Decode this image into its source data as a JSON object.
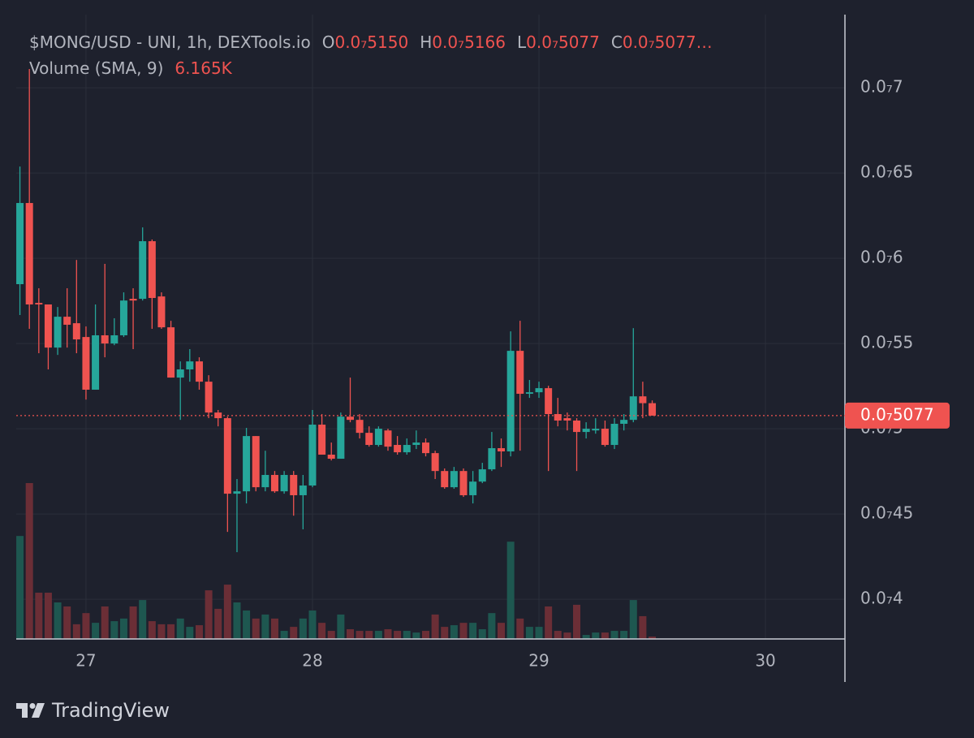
{
  "chart_data": {
    "type": "candlestick",
    "legend": {
      "symbol": "$MONG/USD - UNI, 1h, DEXTools.io",
      "o_label": "O",
      "o": "0.0₇5150",
      "h_label": "H",
      "h": "0.0₇5166",
      "l_label": "L",
      "l": "0.0₇5077",
      "c_label": "C",
      "c": "0.0₇5077…",
      "volume_label": "Volume (SMA, 9)",
      "volume_sma": {
        "value": 6165,
        "label": "6.165K"
      }
    },
    "x": [
      26.7083,
      26.75,
      26.7917,
      26.8333,
      26.875,
      26.9167,
      26.9583,
      27,
      27.0417,
      27.0833,
      27.125,
      27.1667,
      27.2083,
      27.25,
      27.2917,
      27.3333,
      27.375,
      27.4167,
      27.4583,
      27.5,
      27.5417,
      27.5833,
      27.625,
      27.6667,
      27.7083,
      27.75,
      27.7917,
      27.8333,
      27.875,
      27.9167,
      27.9583,
      28,
      28.0417,
      28.0833,
      28.125,
      28.1667,
      28.2083,
      28.25,
      28.2917,
      28.3333,
      28.375,
      28.4167,
      28.4583,
      28.5,
      28.5417,
      28.5833,
      28.625,
      28.6667,
      28.7083,
      28.75,
      28.7917,
      28.8333,
      28.875,
      28.9167,
      28.9583,
      29,
      29.0417,
      29.0833,
      29.125,
      29.1667,
      29.2083,
      29.25,
      29.2917,
      29.3333,
      29.375,
      29.4167,
      29.4583,
      29.5
    ],
    "open": [
      5.848e-08,
      6.324e-08,
      5.738e-08,
      5.729e-08,
      5.476e-08,
      5.657e-08,
      5.619e-08,
      5.538e-08,
      5.229e-08,
      5.548e-08,
      5.5e-08,
      5.548e-08,
      5.762e-08,
      5.762e-08,
      6.1e-08,
      5.776e-08,
      5.595e-08,
      5.3e-08,
      5.348e-08,
      5.395e-08,
      5.276e-08,
      5.095e-08,
      5.062e-08,
      4.619e-08,
      4.633e-08,
      4.957e-08,
      4.657e-08,
      4.729e-08,
      4.633e-08,
      4.729e-08,
      4.61e-08,
      4.667e-08,
      5.024e-08,
      4.848e-08,
      4.824e-08,
      5.071e-08,
      5.052e-08,
      4.976e-08,
      4.905e-08,
      4.99e-08,
      4.905e-08,
      4.862e-08,
      4.905e-08,
      4.919e-08,
      4.857e-08,
      4.752e-08,
      4.657e-08,
      4.752e-08,
      4.61e-08,
      4.69e-08,
      4.762e-08,
      4.886e-08,
      4.867e-08,
      5.457e-08,
      5.205e-08,
      5.214e-08,
      5.238e-08,
      5.086e-08,
      5.062e-08,
      5.048e-08,
      4.981e-08,
      4.99e-08,
      5e-08,
      4.905e-08,
      5.029e-08,
      5.052e-08,
      5.19e-08,
      5.15e-08
    ],
    "high": [
      6.538e-08,
      7.11e-08,
      5.824e-08,
      5.729e-08,
      5.714e-08,
      5.824e-08,
      5.99e-08,
      5.6e-08,
      5.729e-08,
      5.967e-08,
      5.648e-08,
      5.8e-08,
      5.824e-08,
      6.181e-08,
      6.11e-08,
      5.8e-08,
      5.633e-08,
      5.395e-08,
      5.467e-08,
      5.419e-08,
      5.314e-08,
      5.11e-08,
      5.071e-08,
      4.705e-08,
      5.005e-08,
      4.957e-08,
      4.871e-08,
      4.752e-08,
      4.752e-08,
      4.752e-08,
      4.729e-08,
      5.11e-08,
      5.086e-08,
      4.919e-08,
      5.095e-08,
      5.3e-08,
      5.086e-08,
      5.014e-08,
      5.014e-08,
      5e-08,
      4.957e-08,
      4.943e-08,
      4.99e-08,
      4.943e-08,
      4.871e-08,
      4.767e-08,
      4.776e-08,
      4.767e-08,
      4.752e-08,
      4.8e-08,
      4.981e-08,
      4.943e-08,
      5.571e-08,
      5.633e-08,
      5.286e-08,
      5.276e-08,
      5.252e-08,
      5.181e-08,
      5.095e-08,
      5.062e-08,
      5.038e-08,
      5.062e-08,
      5.048e-08,
      5.062e-08,
      5.086e-08,
      5.59e-08,
      5.276e-08,
      5.166e-08
    ],
    "low": [
      5.667e-08,
      5.586e-08,
      5.443e-08,
      5.348e-08,
      5.433e-08,
      5.476e-08,
      5.443e-08,
      5.171e-08,
      5.229e-08,
      5.419e-08,
      5.49e-08,
      5.538e-08,
      5.467e-08,
      5.752e-08,
      5.586e-08,
      5.586e-08,
      5.3e-08,
      5.052e-08,
      5.276e-08,
      5.229e-08,
      5.062e-08,
      5.014e-08,
      4.395e-08,
      4.276e-08,
      4.562e-08,
      4.633e-08,
      4.633e-08,
      4.624e-08,
      4.619e-08,
      4.49e-08,
      4.41e-08,
      4.657e-08,
      4.848e-08,
      4.814e-08,
      4.824e-08,
      5.038e-08,
      4.943e-08,
      4.895e-08,
      4.895e-08,
      4.871e-08,
      4.848e-08,
      4.848e-08,
      4.881e-08,
      4.838e-08,
      4.705e-08,
      4.648e-08,
      4.648e-08,
      4.6e-08,
      4.562e-08,
      4.681e-08,
      4.752e-08,
      4.776e-08,
      4.838e-08,
      4.871e-08,
      5.181e-08,
      5.181e-08,
      4.752e-08,
      5.014e-08,
      4.99e-08,
      4.752e-08,
      4.943e-08,
      4.971e-08,
      4.895e-08,
      4.881e-08,
      4.99e-08,
      5.038e-08,
      5.062e-08,
      5.077e-08
    ],
    "close": [
      6.324e-08,
      5.729e-08,
      5.729e-08,
      5.476e-08,
      5.657e-08,
      5.61e-08,
      5.524e-08,
      5.229e-08,
      5.548e-08,
      5.5e-08,
      5.548e-08,
      5.752e-08,
      5.752e-08,
      6.1e-08,
      5.767e-08,
      5.595e-08,
      5.3e-08,
      5.348e-08,
      5.395e-08,
      5.276e-08,
      5.095e-08,
      5.062e-08,
      4.619e-08,
      4.633e-08,
      4.957e-08,
      4.657e-08,
      4.729e-08,
      4.633e-08,
      4.729e-08,
      4.61e-08,
      4.667e-08,
      5.024e-08,
      4.848e-08,
      4.824e-08,
      5.071e-08,
      5.052e-08,
      4.976e-08,
      4.905e-08,
      5e-08,
      4.895e-08,
      4.862e-08,
      4.905e-08,
      4.919e-08,
      4.857e-08,
      4.752e-08,
      4.657e-08,
      4.752e-08,
      4.61e-08,
      4.69e-08,
      4.762e-08,
      4.886e-08,
      4.867e-08,
      5.457e-08,
      5.205e-08,
      5.214e-08,
      5.238e-08,
      5.086e-08,
      5.048e-08,
      5.048e-08,
      4.981e-08,
      5e-08,
      5e-08,
      4.905e-08,
      5.029e-08,
      5.052e-08,
      5.19e-08,
      5.15e-08,
      5.077e-08
    ],
    "volume": [
      43400,
      65700,
      19500,
      19500,
      15400,
      13700,
      6200,
      10900,
      6800,
      13700,
      7500,
      8600,
      13700,
      16400,
      7500,
      6200,
      6200,
      8600,
      5100,
      5800,
      20500,
      12700,
      22900,
      15400,
      12000,
      8600,
      10300,
      8600,
      3400,
      5100,
      8600,
      12000,
      6800,
      3400,
      10300,
      4100,
      3400,
      3400,
      3400,
      4100,
      3400,
      3400,
      2700,
      3400,
      10300,
      5100,
      5800,
      6800,
      6800,
      4100,
      10900,
      6800,
      41000,
      8600,
      5100,
      5100,
      13700,
      3400,
      2700,
      14400,
      1700,
      2700,
      2700,
      3400,
      3400,
      16400,
      9600,
      1000
    ],
    "up_color": "#26a69a",
    "down_color": "#ef5350",
    "volume_up_color": "#1e5750",
    "volume_down_color": "#6b2e36",
    "xlim": [
      26.692,
      30.351
    ],
    "xticks": [
      27,
      28,
      29,
      30
    ],
    "ylim": [
      3.767e-08,
      7.429e-08
    ],
    "yticks": [
      {
        "value": 4e-08,
        "label": "0.0₇4"
      },
      {
        "value": 4.5e-08,
        "label": "0.0₇45"
      },
      {
        "value": 5e-08,
        "label": "0.0₇5"
      },
      {
        "value": 5.5e-08,
        "label": "0.0₇55"
      },
      {
        "value": 6e-08,
        "label": "0.0₇6"
      },
      {
        "value": 6.5e-08,
        "label": "0.0₇65"
      },
      {
        "value": 7e-08,
        "label": "0.0₇7"
      }
    ],
    "last_price": {
      "value": 5.077e-08,
      "label": "0.0₇5077"
    },
    "grid": true,
    "footer": "TradingView"
  }
}
